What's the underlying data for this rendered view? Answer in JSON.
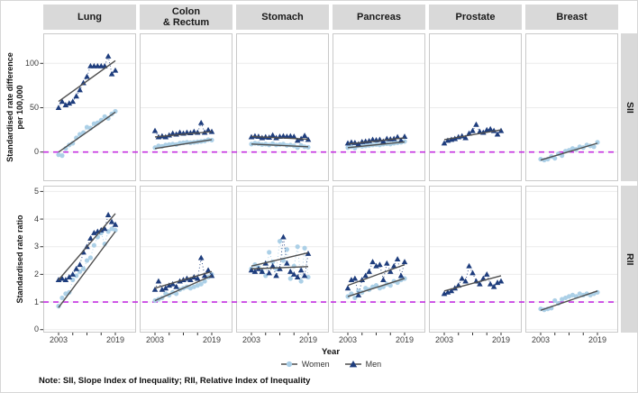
{
  "note": "Note: SII, Slope Index of Inequality; RII, Relative Index of Inequality",
  "chart_data": {
    "type": "scatter",
    "title": "",
    "facet_columns": [
      "Lung",
      "Colon\n& Rectum",
      "Stomach",
      "Pancreas",
      "Prostate",
      "Breast"
    ],
    "facet_rows": [
      "SII",
      "RII"
    ],
    "x_years": [
      2003,
      2004,
      2005,
      2006,
      2007,
      2008,
      2009,
      2010,
      2011,
      2012,
      2013,
      2014,
      2015,
      2016,
      2017,
      2018,
      2019
    ],
    "x_axis": {
      "label": "Year",
      "labeled_ticks": [
        2003,
        2019
      ],
      "minor_ticks": [
        2007,
        2011,
        2015
      ],
      "range": [
        2003,
        2019
      ]
    },
    "legend": [
      {
        "label": "Women",
        "marker": "circle",
        "color": "#a8cde6"
      },
      {
        "label": "Men",
        "marker": "triangle",
        "color": "#1e3d7d"
      }
    ],
    "reference_lines": {
      "SII": 0,
      "RII": 1
    },
    "colors": {
      "women": "#a8cde6",
      "men": "#1e3d7d",
      "fit_line": "#4f4f4f",
      "reference": "#c430e0",
      "gridline": "#ebebeb",
      "panel_border": "#c9c9c9",
      "strip_bg": "#d9d9d9"
    },
    "rows": [
      {
        "id": "SII",
        "ylabel": "Standardised rate difference\nper 100,000",
        "yticks": [
          0,
          50,
          100
        ],
        "ylim": [
          -33,
          134
        ],
        "grid": true,
        "legend_position": "bottom",
        "panels": [
          {
            "cancer": "Lung",
            "women": [
              -3,
              -4,
              4,
              8,
              10,
              16,
              20,
              22,
              28,
              27,
              32,
              33,
              36,
              40,
              38,
              43,
              46
            ],
            "men": [
              50,
              57,
              53,
              55,
              57,
              63,
              70,
              78,
              85,
              97,
              97,
              97,
              97,
              97,
              108,
              88,
              92
            ],
            "women_fit": [
              0,
              45
            ],
            "men_fit": [
              57,
              103
            ]
          },
          {
            "cancer": "Colon & Rectum",
            "women": [
              5,
              7,
              6.5,
              8,
              8.5,
              9,
              8.5,
              10,
              10.5,
              11,
              10.5,
              11,
              11.5,
              12,
              12.5,
              14,
              13.5
            ],
            "men": [
              24,
              17,
              18,
              17,
              19,
              21,
              20,
              22,
              21,
              22,
              21.5,
              23,
              22,
              33,
              22,
              25,
              23
            ],
            "women_fit": [
              4,
              14
            ],
            "men_fit": [
              17,
              23
            ]
          },
          {
            "cancer": "Stomach",
            "women": [
              9,
              10,
              9.5,
              8.5,
              9,
              8,
              9.5,
              8,
              8.5,
              9,
              7.5,
              8,
              7,
              5,
              7.5,
              6,
              5.5
            ],
            "men": [
              17,
              18,
              17.5,
              16,
              17,
              16.5,
              19,
              16,
              17.5,
              18,
              17.5,
              18,
              17.5,
              13,
              15,
              18.5,
              14
            ],
            "women_fit": [
              9,
              6
            ],
            "men_fit": [
              17.5,
              14.5
            ]
          },
          {
            "cancer": "Pancreas",
            "women": [
              5,
              6,
              4.5,
              7,
              6.5,
              7,
              7.5,
              8,
              8.5,
              8,
              9,
              9.5,
              9,
              10,
              10.5,
              11,
              12
            ],
            "men": [
              10,
              11,
              10.5,
              9,
              11.5,
              12,
              12.5,
              14,
              13.5,
              14,
              12,
              15,
              14.5,
              15,
              17,
              13,
              17.5
            ],
            "women_fit": [
              5,
              11.5
            ],
            "men_fit": [
              9,
              16
            ]
          },
          {
            "cancer": "Prostate",
            "women": null,
            "men": [
              10,
              13,
              14,
              15,
              17,
              18,
              16,
              21,
              24,
              31,
              23,
              22,
              25,
              26,
              24,
              20,
              24
            ],
            "women_fit": null,
            "men_fit": [
              14,
              25
            ]
          },
          {
            "cancer": "Breast",
            "women": [
              -8,
              -9,
              -8,
              -5,
              -7,
              -2,
              -4,
              1,
              2,
              4,
              3,
              6,
              5,
              8,
              7,
              6,
              11
            ],
            "men": null,
            "women_fit": [
              -9,
              10
            ],
            "men_fit": null
          }
        ]
      },
      {
        "id": "RII",
        "ylabel": "Standardised rate ratio",
        "yticks": [
          0,
          1,
          2,
          3,
          4,
          5
        ],
        "ylim": [
          -0.1,
          5.2
        ],
        "grid": true,
        "legend_position": "bottom",
        "panels": [
          {
            "cancer": "Lung",
            "women": [
              0.85,
              1.15,
              1.3,
              1.35,
              1.8,
              1.95,
              2.1,
              2.2,
              2.5,
              2.6,
              3.05,
              3.35,
              3.5,
              3.1,
              3.55,
              3.65,
              3.6
            ],
            "men": [
              1.8,
              1.85,
              1.8,
              1.9,
              2.0,
              2.2,
              2.35,
              2.8,
              3.0,
              3.3,
              3.5,
              3.55,
              3.6,
              3.65,
              4.15,
              3.9,
              3.8
            ],
            "women_fit": [
              0.8,
              3.55
            ],
            "men_fit": [
              1.8,
              4.2
            ]
          },
          {
            "cancer": "Colon & Rectum",
            "women": [
              1.05,
              1.1,
              1.15,
              1.3,
              1.25,
              1.35,
              1.3,
              1.45,
              1.5,
              1.55,
              1.5,
              1.55,
              1.6,
              1.65,
              1.75,
              1.9,
              2.0
            ],
            "men": [
              1.45,
              1.75,
              1.45,
              1.5,
              1.6,
              1.65,
              1.55,
              1.75,
              1.8,
              1.85,
              1.8,
              1.9,
              1.85,
              2.6,
              1.95,
              2.15,
              1.95
            ],
            "women_fit": [
              1.05,
              1.95
            ],
            "men_fit": [
              1.5,
              2.1
            ]
          },
          {
            "cancer": "Stomach",
            "women": [
              2.2,
              2.35,
              2.25,
              2.1,
              1.95,
              2.8,
              2.45,
              2.2,
              3.2,
              2.5,
              2.9,
              1.85,
              2.3,
              3.0,
              1.75,
              2.95,
              1.9
            ],
            "men": [
              2.15,
              2.1,
              2.2,
              2.1,
              2.4,
              2.05,
              2.3,
              1.95,
              2.2,
              3.35,
              2.4,
              2.1,
              2.0,
              1.9,
              2.15,
              1.95,
              2.75
            ],
            "women_fit": [
              2.3,
              2.78
            ],
            "men_fit": [
              2.2,
              2.28
            ]
          },
          {
            "cancer": "Pancreas",
            "women": [
              1.2,
              1.3,
              1.15,
              1.4,
              1.35,
              1.5,
              1.45,
              1.55,
              1.6,
              1.5,
              1.55,
              1.65,
              1.6,
              1.75,
              1.7,
              1.8,
              1.85
            ],
            "men": [
              1.5,
              1.8,
              1.85,
              1.25,
              1.8,
              1.95,
              2.1,
              2.45,
              2.3,
              2.35,
              1.8,
              2.4,
              2.1,
              2.3,
              2.55,
              1.95,
              2.45
            ],
            "women_fit": [
              1.2,
              1.85
            ],
            "men_fit": [
              1.6,
              2.35
            ]
          },
          {
            "cancer": "Prostate",
            "women": null,
            "men": [
              1.3,
              1.35,
              1.4,
              1.5,
              1.6,
              1.85,
              1.75,
              2.3,
              2.05,
              1.75,
              1.65,
              1.85,
              2.0,
              1.65,
              1.55,
              1.7,
              1.75
            ],
            "women_fit": null,
            "men_fit": [
              1.4,
              1.95
            ]
          },
          {
            "cancer": "Breast",
            "women": [
              0.75,
              0.72,
              0.75,
              0.78,
              1.05,
              0.95,
              1.1,
              1.15,
              1.2,
              1.25,
              1.2,
              1.3,
              1.25,
              1.3,
              1.25,
              1.3,
              1.35
            ],
            "men": null,
            "women_fit": [
              0.7,
              1.4
            ],
            "men_fit": null
          }
        ]
      }
    ]
  }
}
